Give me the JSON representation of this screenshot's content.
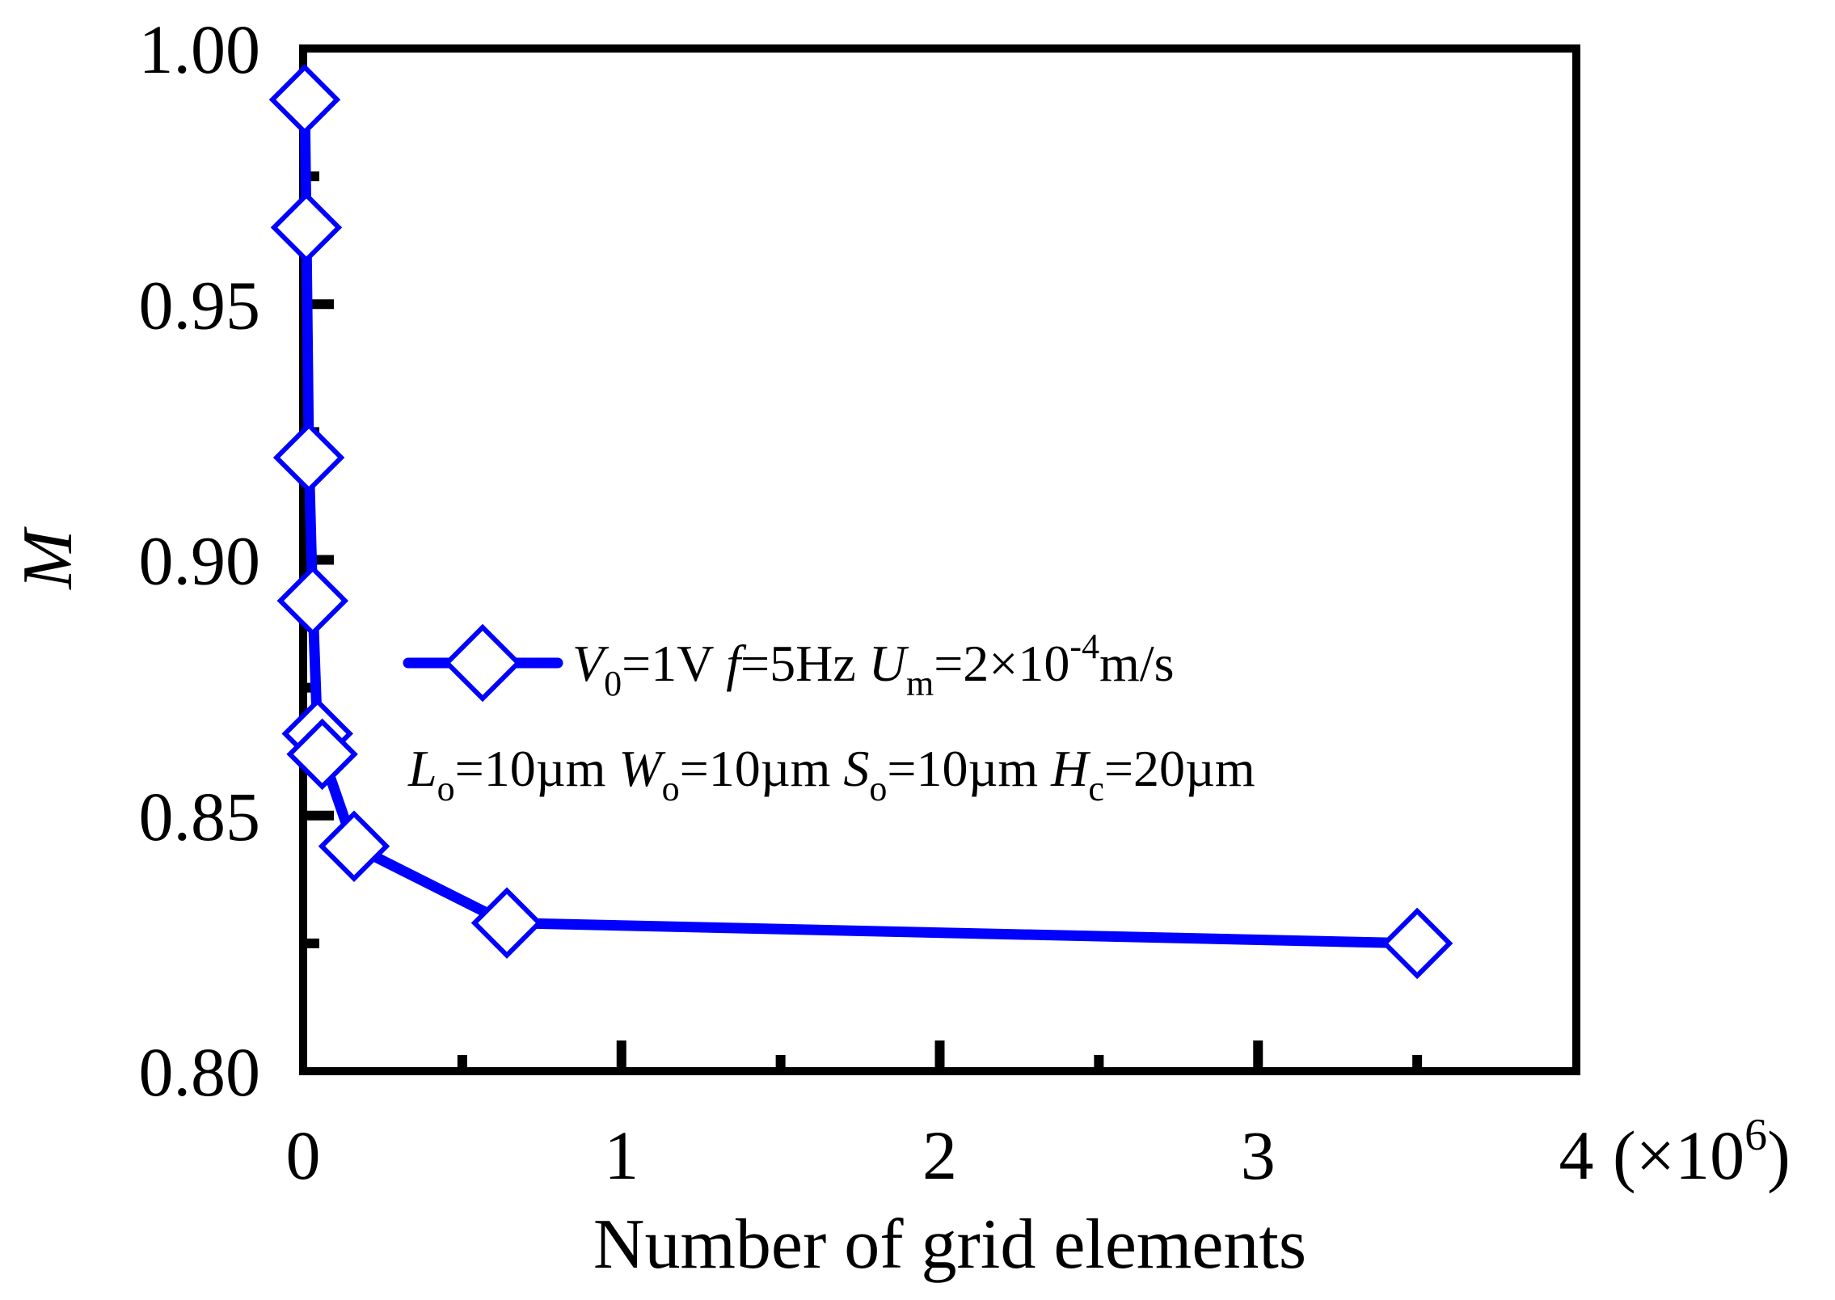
{
  "colors": {
    "series": "#0000ff",
    "axes": "#000000",
    "background": "#ffffff"
  },
  "chart_data": {
    "type": "line",
    "xlabel": "Number of grid elements",
    "ylabel": "M",
    "x_multiplier_label": "(×10",
    "x_multiplier_exp": "6",
    "x_multiplier_close": ")",
    "xlim": [
      0,
      4
    ],
    "ylim": [
      0.8,
      1.0
    ],
    "x_ticks": [
      0,
      1,
      2,
      3,
      4
    ],
    "x_tick_labels": [
      "0",
      "1",
      "2",
      "3",
      "4"
    ],
    "x_minor_ticks": [
      0.5,
      1.5,
      2.5,
      3.5
    ],
    "y_ticks": [
      0.8,
      0.85,
      0.9,
      0.95,
      1.0
    ],
    "y_tick_labels": [
      "0.80",
      "0.85",
      "0.90",
      "0.95",
      "1.00"
    ],
    "y_minor_ticks": [
      0.825,
      0.875,
      0.925,
      0.975
    ],
    "grid": false,
    "legend_position": "center-right",
    "series": [
      {
        "marker": "diamond-open",
        "x": [
          0.005,
          0.01,
          0.018,
          0.03,
          0.045,
          0.06,
          0.16,
          0.64,
          3.5
        ],
        "y": [
          0.99,
          0.965,
          0.92,
          0.892,
          0.866,
          0.862,
          0.844,
          0.829,
          0.825
        ]
      }
    ],
    "legend": {
      "line1": {
        "v_sym": "V",
        "v_sub": "0",
        "v_val": "=1V ",
        "f_sym": "f",
        "f_val": "=5Hz ",
        "u_sym": "U",
        "u_sub": "m",
        "u_val": "=2×10",
        "u_exp": "-4",
        "u_unit": "m/s"
      },
      "line2": {
        "l_sym": "L",
        "l_sub": "o",
        "l_val": "=10µm ",
        "w_sym": "W",
        "w_sub": "o",
        "w_val": "=10µm ",
        "s_sym": "S",
        "s_sub": "o",
        "s_val": "=10µm ",
        "h_sym": "H",
        "h_sub": "c",
        "h_val": "=20µm"
      }
    }
  }
}
